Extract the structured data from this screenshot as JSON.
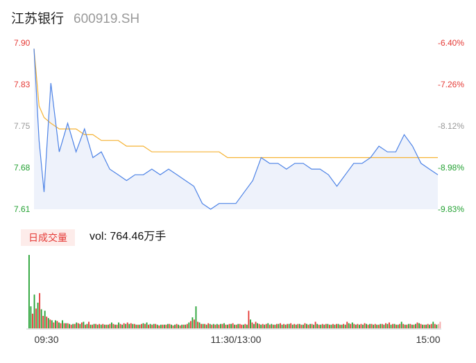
{
  "header": {
    "name": "江苏银行",
    "code": "600919.SH"
  },
  "volume_panel": {
    "tag": "日成交量",
    "summary": "vol: 764.46万手"
  },
  "colors": {
    "price_line": "#4c82e6",
    "avg_line": "#f5b233",
    "up": "#e53935",
    "down": "#23a132",
    "neutral": "#999999",
    "area_fill": "#eef2fb"
  },
  "chart_data": [
    {
      "type": "line",
      "title": "",
      "xlabel": "",
      "ylabel": "",
      "ylim": [
        7.61,
        7.9
      ],
      "y_ticks_left": [
        "7.90",
        "7.83",
        "7.75",
        "7.68",
        "7.61"
      ],
      "y_ticks_right": [
        "-6.40%",
        "-7.26%",
        "-8.12%",
        "-8.98%",
        "-9.83%"
      ],
      "x_ticks": [
        "09:30",
        "11:30/13:00",
        "15:00"
      ],
      "x_minutes": [
        0,
        3,
        6,
        10,
        15,
        20,
        25,
        30,
        35,
        40,
        45,
        50,
        55,
        60,
        65,
        70,
        75,
        80,
        85,
        90,
        95,
        100,
        105,
        110,
        115,
        119,
        120,
        125,
        130,
        135,
        140,
        145,
        150,
        155,
        160,
        165,
        170,
        175,
        180,
        185,
        190,
        195,
        200,
        205,
        210,
        215,
        220,
        225,
        230,
        235,
        240
      ],
      "series": [
        {
          "values": [
            7.89,
            7.73,
            7.64,
            7.83,
            7.71,
            7.76,
            7.71,
            7.75,
            7.7,
            7.71,
            7.68,
            7.67,
            7.66,
            7.67,
            7.67,
            7.68,
            7.67,
            7.68,
            7.67,
            7.66,
            7.65,
            7.62,
            7.61,
            7.62,
            7.62,
            7.62,
            7.62,
            7.64,
            7.66,
            7.7,
            7.69,
            7.69,
            7.68,
            7.69,
            7.69,
            7.68,
            7.68,
            7.67,
            7.65,
            7.67,
            7.69,
            7.69,
            7.7,
            7.72,
            7.71,
            7.71,
            7.74,
            7.72,
            7.69,
            7.68,
            7.67
          ]
        },
        {
          "values": [
            7.89,
            7.79,
            7.77,
            7.76,
            7.75,
            7.75,
            7.75,
            7.74,
            7.74,
            7.73,
            7.73,
            7.73,
            7.72,
            7.72,
            7.72,
            7.71,
            7.71,
            7.71,
            7.71,
            7.71,
            7.71,
            7.71,
            7.71,
            7.71,
            7.7,
            7.7,
            7.7,
            7.7,
            7.7,
            7.7,
            7.7,
            7.7,
            7.7,
            7.7,
            7.7,
            7.7,
            7.7,
            7.7,
            7.7,
            7.7,
            7.7,
            7.7,
            7.7,
            7.7,
            7.7,
            7.7,
            7.7,
            7.7,
            7.7,
            7.7,
            7.7
          ]
        }
      ]
    },
    {
      "type": "bar",
      "title": "",
      "xlabel": "",
      "ylabel": "",
      "y_max": 100,
      "x_start_minute": 0,
      "bar_step_minutes": 1,
      "volumes": [
        100,
        30,
        20,
        46,
        27,
        35,
        48,
        26,
        17,
        24,
        16,
        14,
        12,
        11,
        8,
        11,
        10,
        8,
        7,
        11,
        7,
        7,
        7,
        6,
        5,
        6,
        6,
        8,
        7,
        6,
        8,
        9,
        5,
        6,
        9,
        5,
        5,
        6,
        6,
        5,
        6,
        5,
        6,
        5,
        5,
        5,
        6,
        8,
        6,
        5,
        5,
        8,
        6,
        5,
        7,
        6,
        8,
        6,
        7,
        6,
        6,
        5,
        5,
        5,
        6,
        7,
        6,
        8,
        5,
        6,
        5,
        6,
        6,
        5,
        4,
        5,
        5,
        5,
        5,
        6,
        6,
        5,
        4,
        5,
        6,
        5,
        4,
        5,
        5,
        5,
        6,
        8,
        10,
        15,
        12,
        30,
        9,
        8,
        6,
        6,
        6,
        5,
        7,
        6,
        5,
        6,
        5,
        6,
        5,
        6,
        6,
        7,
        5,
        5,
        6,
        6,
        7,
        5,
        5,
        6,
        6,
        5,
        5,
        6,
        5,
        24,
        12,
        8,
        6,
        9,
        7,
        6,
        5,
        6,
        5,
        6,
        7,
        5,
        6,
        5,
        5,
        6,
        6,
        7,
        5,
        6,
        5,
        6,
        6,
        7,
        5,
        6,
        5,
        6,
        6,
        5,
        5,
        7,
        6,
        5,
        6,
        6,
        5,
        9,
        6,
        5,
        5,
        6,
        5,
        6,
        6,
        5,
        5,
        6,
        5,
        6,
        6,
        5,
        5,
        6,
        5,
        9,
        7,
        6,
        8,
        6,
        5,
        6,
        5,
        6,
        5,
        7,
        6,
        5,
        6,
        6,
        5,
        6,
        5,
        5,
        6,
        6,
        5,
        7,
        6,
        8,
        5,
        6,
        6,
        5,
        5,
        6,
        9,
        6,
        5,
        5,
        6,
        6,
        5,
        5,
        6,
        8,
        7,
        6,
        5,
        5,
        5,
        6,
        5,
        6,
        9,
        6,
        5,
        6,
        9
      ],
      "directions": [
        "d",
        "d",
        "u",
        "d",
        "u",
        "d",
        "u",
        "d",
        "u",
        "d",
        "u",
        "d",
        "u",
        "d",
        "u",
        "d",
        "u",
        "d",
        "u",
        "d",
        "u",
        "d",
        "u",
        "d",
        "u",
        "d",
        "u",
        "d",
        "u",
        "d",
        "u",
        "d",
        "u",
        "d",
        "u",
        "d",
        "u",
        "d",
        "u",
        "d",
        "u",
        "d",
        "u",
        "d",
        "u",
        "d",
        "u",
        "d",
        "u",
        "d",
        "u",
        "d",
        "u",
        "d",
        "u",
        "d",
        "u",
        "d",
        "u",
        "d",
        "u",
        "d",
        "u",
        "d",
        "u",
        "d",
        "u",
        "d",
        "u",
        "d",
        "u",
        "d",
        "u",
        "d",
        "u",
        "d",
        "u",
        "d",
        "u",
        "d",
        "u",
        "d",
        "u",
        "d",
        "u",
        "d",
        "u",
        "d",
        "u",
        "d",
        "u",
        "d",
        "u",
        "d",
        "u",
        "d",
        "u",
        "d",
        "u",
        "d",
        "u",
        "d",
        "u",
        "d",
        "u",
        "d",
        "u",
        "d",
        "u",
        "d",
        "u",
        "d",
        "u",
        "d",
        "u",
        "d",
        "u",
        "d",
        "u",
        "d",
        "u",
        "u",
        "d",
        "u",
        "d",
        "u",
        "d",
        "u",
        "d",
        "u",
        "d",
        "u",
        "d",
        "u",
        "d",
        "u",
        "d",
        "u",
        "d",
        "u",
        "d",
        "u",
        "d",
        "u",
        "d",
        "u",
        "d",
        "u",
        "d",
        "u",
        "d",
        "u",
        "d",
        "u",
        "d",
        "u",
        "d",
        "u",
        "d",
        "u",
        "d",
        "u",
        "d",
        "u",
        "d",
        "u",
        "d",
        "u",
        "d",
        "u",
        "d",
        "u",
        "d",
        "u",
        "d",
        "u",
        "d",
        "u",
        "d",
        "u",
        "d",
        "u",
        "d",
        "u",
        "d",
        "u",
        "d",
        "u",
        "d",
        "u",
        "d",
        "u",
        "d",
        "u",
        "d",
        "u",
        "d",
        "u",
        "d",
        "u",
        "d",
        "u",
        "d",
        "u",
        "d",
        "u",
        "d",
        "u",
        "d",
        "u",
        "d",
        "u",
        "d",
        "u",
        "d",
        "u",
        "d",
        "u",
        "d",
        "u",
        "d",
        "u",
        "d",
        "u",
        "d",
        "u",
        "d",
        "u",
        "d",
        "u",
        "d",
        "u",
        "d",
        "n"
      ]
    }
  ]
}
